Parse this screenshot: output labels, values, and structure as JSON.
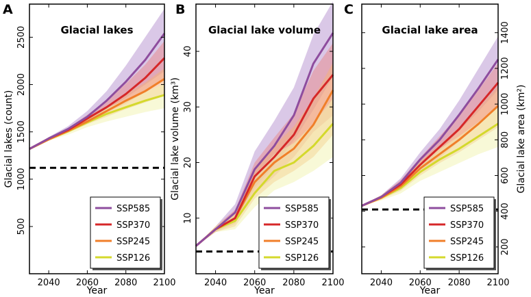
{
  "chart_data": [
    {
      "type": "line",
      "panel_letter": "A",
      "title": "Glacial lakes",
      "xlabel": "Year",
      "ylabel": "Glacial lakes (count)",
      "ylabel_side": "left",
      "xlim": [
        2030,
        2100
      ],
      "ylim": [
        1,
        2850
      ],
      "xticks": [
        2040,
        2060,
        2080,
        2100
      ],
      "yticks": [
        500,
        1000,
        1500,
        2000,
        2500
      ],
      "x": [
        2030,
        2040,
        2050,
        2060,
        2070,
        2080,
        2090,
        2100
      ],
      "baseline": 1120,
      "legend_position": "bottom-right",
      "series": [
        {
          "name": "SSP585",
          "color": "#8e4d9e",
          "band_color": "#b592cf",
          "values": [
            1320,
            1430,
            1530,
            1660,
            1830,
            2030,
            2260,
            2540
          ],
          "lower": [
            1320,
            1420,
            1505,
            1610,
            1735,
            1860,
            2000,
            2140
          ],
          "upper": [
            1320,
            1445,
            1560,
            1720,
            1930,
            2200,
            2500,
            2800
          ]
        },
        {
          "name": "SSP370",
          "color": "#d62728",
          "band_color": "#e8888a",
          "values": [
            1320,
            1430,
            1520,
            1640,
            1760,
            1900,
            2070,
            2280
          ],
          "lower": [
            1320,
            1420,
            1500,
            1600,
            1700,
            1800,
            1920,
            2050
          ],
          "upper": [
            1320,
            1440,
            1540,
            1680,
            1830,
            2010,
            2210,
            2460
          ]
        },
        {
          "name": "SSP245",
          "color": "#f07f29",
          "band_color": "#f5b278",
          "values": [
            1320,
            1420,
            1510,
            1610,
            1720,
            1830,
            1930,
            2060
          ],
          "lower": [
            1320,
            1410,
            1490,
            1580,
            1660,
            1740,
            1810,
            1880
          ],
          "upper": [
            1320,
            1430,
            1530,
            1650,
            1770,
            1900,
            2020,
            2170
          ]
        },
        {
          "name": "SSP126",
          "color": "#d4d92c",
          "band_color": "#f2f4b0",
          "values": [
            1320,
            1420,
            1505,
            1600,
            1690,
            1760,
            1830,
            1890
          ],
          "lower": [
            1320,
            1405,
            1470,
            1550,
            1610,
            1660,
            1710,
            1750
          ],
          "upper": [
            1320,
            1430,
            1530,
            1650,
            1750,
            1840,
            1920,
            2010
          ]
        }
      ]
    },
    {
      "type": "line",
      "panel_letter": "B",
      "title": "Glacial lake volume",
      "xlabel": "Year",
      "ylabel": "Glacial lake volume (km³)",
      "ylabel_side": "left",
      "xlim": [
        2030,
        2100
      ],
      "ylim": [
        0,
        48.5
      ],
      "xticks": [
        2040,
        2060,
        2080,
        2100
      ],
      "yticks": [
        10,
        20,
        30,
        40
      ],
      "x": [
        2030,
        2040,
        2050,
        2060,
        2070,
        2080,
        2090,
        2100
      ],
      "baseline": 4.0,
      "legend_position": "bottom-right",
      "series": [
        {
          "name": "SSP585",
          "color": "#8e4d9e",
          "band_color": "#b592cf",
          "values": [
            5.0,
            8.0,
            11.0,
            18.8,
            23.0,
            28.5,
            37.8,
            43.3
          ],
          "lower": [
            5.0,
            7.5,
            9.5,
            15.5,
            19.5,
            24.0,
            29.5,
            35.5
          ],
          "upper": [
            5.0,
            8.5,
            12.5,
            22.0,
            27.5,
            33.5,
            43.0,
            49.0
          ]
        },
        {
          "name": "SSP370",
          "color": "#d62728",
          "band_color": "#e8888a",
          "values": [
            5.0,
            8.0,
            10.0,
            17.5,
            21.0,
            25.0,
            31.5,
            35.8
          ],
          "lower": [
            5.0,
            7.5,
            9.0,
            14.5,
            17.5,
            21.0,
            25.5,
            28.5
          ],
          "upper": [
            5.0,
            8.5,
            11.5,
            20.0,
            24.5,
            28.8,
            36.5,
            41.5
          ]
        },
        {
          "name": "SSP245",
          "color": "#f07f29",
          "band_color": "#f5b278",
          "values": [
            5.0,
            8.0,
            10.0,
            16.5,
            20.0,
            22.5,
            26.8,
            33.0
          ],
          "lower": [
            5.0,
            7.5,
            8.5,
            13.5,
            16.5,
            18.5,
            21.0,
            25.0
          ],
          "upper": [
            5.0,
            8.5,
            11.0,
            19.0,
            23.0,
            26.5,
            31.5,
            38.0
          ]
        },
        {
          "name": "SSP126",
          "color": "#d4d92c",
          "band_color": "#f2f4b0",
          "values": [
            5.0,
            8.0,
            9.5,
            14.5,
            18.5,
            20.0,
            23.0,
            27.0
          ],
          "lower": [
            5.0,
            7.5,
            8.0,
            12.0,
            15.0,
            16.5,
            18.5,
            21.0
          ],
          "upper": [
            5.0,
            8.5,
            11.0,
            17.5,
            21.5,
            23.5,
            27.0,
            31.5
          ]
        }
      ]
    },
    {
      "type": "line",
      "panel_letter": "C",
      "title": "Glacial lake area",
      "xlabel": "Year",
      "ylabel": "Glacial lake area (km²)",
      "ylabel_side": "right",
      "xlim": [
        2030,
        2100
      ],
      "ylim": [
        50,
        1560
      ],
      "xticks": [
        2040,
        2060,
        2080,
        2100
      ],
      "yticks": [
        200,
        400,
        600,
        800,
        1000,
        1200,
        1400
      ],
      "x": [
        2030,
        2040,
        2050,
        2060,
        2070,
        2080,
        2090,
        2100
      ],
      "baseline": 410,
      "legend_position": "bottom-right",
      "series": [
        {
          "name": "SSP585",
          "color": "#8e4d9e",
          "band_color": "#b592cf",
          "values": [
            430,
            480,
            560,
            690,
            800,
            940,
            1090,
            1250
          ],
          "lower": [
            430,
            470,
            535,
            640,
            740,
            850,
            960,
            1080
          ],
          "upper": [
            430,
            490,
            585,
            730,
            860,
            1020,
            1200,
            1380
          ]
        },
        {
          "name": "SSP370",
          "color": "#d62728",
          "band_color": "#e8888a",
          "values": [
            430,
            480,
            550,
            660,
            760,
            860,
            990,
            1120
          ],
          "lower": [
            430,
            470,
            525,
            620,
            700,
            790,
            890,
            990
          ],
          "upper": [
            430,
            490,
            575,
            700,
            820,
            940,
            1080,
            1230
          ]
        },
        {
          "name": "SSP245",
          "color": "#f07f29",
          "band_color": "#f5b278",
          "values": [
            430,
            475,
            540,
            640,
            720,
            800,
            890,
            990
          ],
          "lower": [
            430,
            465,
            515,
            600,
            670,
            730,
            800,
            870
          ],
          "upper": [
            430,
            485,
            565,
            680,
            770,
            870,
            980,
            1100
          ]
        },
        {
          "name": "SSP126",
          "color": "#d4d92c",
          "band_color": "#f2f4b0",
          "values": [
            430,
            475,
            530,
            620,
            690,
            750,
            820,
            890
          ],
          "lower": [
            430,
            460,
            500,
            570,
            620,
            670,
            720,
            760
          ],
          "upper": [
            430,
            490,
            560,
            670,
            750,
            820,
            900,
            990
          ]
        }
      ]
    }
  ]
}
